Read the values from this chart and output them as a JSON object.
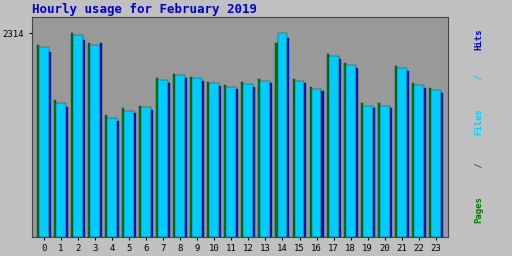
{
  "title": "Hourly usage for February 2019",
  "title_color": "#0000cc",
  "title_fontsize": 9,
  "hours": [
    0,
    1,
    2,
    3,
    4,
    5,
    6,
    7,
    8,
    9,
    10,
    11,
    12,
    13,
    14,
    15,
    16,
    17,
    18,
    19,
    20,
    21,
    22,
    23
  ],
  "pages": [
    2180,
    1550,
    2314,
    2200,
    1380,
    1460,
    1490,
    1800,
    1850,
    1820,
    1760,
    1720,
    1760,
    1790,
    2200,
    1790,
    1700,
    2080,
    1980,
    1520,
    1520,
    1940,
    1750,
    1690
  ],
  "files": [
    2160,
    1520,
    2290,
    2175,
    1350,
    1435,
    1470,
    1780,
    1835,
    1805,
    1745,
    1705,
    1735,
    1775,
    2314,
    1775,
    1685,
    2055,
    1955,
    1490,
    1490,
    1915,
    1725,
    1665
  ],
  "hits": [
    2100,
    1480,
    2240,
    2200,
    1310,
    1405,
    1445,
    1750,
    1805,
    1775,
    1715,
    1675,
    1705,
    1745,
    2260,
    1745,
    1655,
    2020,
    1920,
    1460,
    1460,
    1885,
    1695,
    1635
  ],
  "pages_color": "#007700",
  "files_color": "#00ccff",
  "hits_color": "#0000cc",
  "bg_color": "#c0c0c0",
  "plot_bg_color": "#999999",
  "bar_edge_color": "#004444",
  "ylim_max": 2500,
  "ytick_value": 2314,
  "ytick_label": "2314",
  "pages_bw": 0.12,
  "files_bw": 0.58,
  "hits_bw": 0.12,
  "figsize": [
    5.12,
    2.56
  ],
  "dpi": 100,
  "right_label_segments": [
    [
      "Pages",
      "#007700"
    ],
    [
      " / ",
      "#007700"
    ],
    [
      "Files",
      "#00ccff"
    ],
    [
      " / ",
      "#00ccff"
    ],
    [
      "Hits",
      "#0000cc"
    ]
  ]
}
